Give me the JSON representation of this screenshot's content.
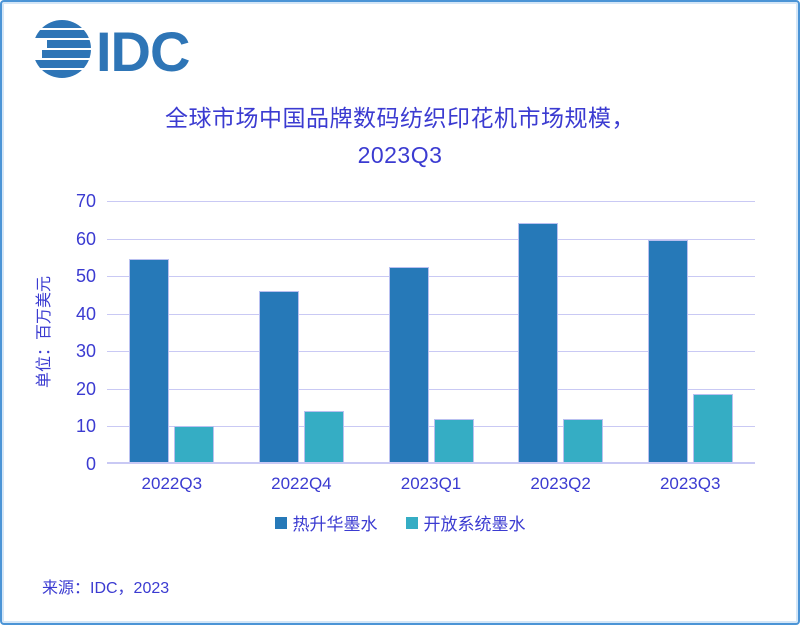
{
  "frame": {
    "border_color": "#4b94d6"
  },
  "logo": {
    "text": "IDC",
    "color": "#2e75b6"
  },
  "title": {
    "line1": "全球市场中国品牌数码纺织印花机市场规模，",
    "line2": "2023Q3"
  },
  "colors": {
    "text": "#3b3bd1",
    "gridline": "#c9c9f4"
  },
  "y_axis": {
    "unit_label": "单位：百万美元"
  },
  "source_note": "来源：IDC，2023",
  "chart_data": {
    "type": "bar",
    "title": "全球市场中国品牌数码纺织印花机市场规模，2023Q3",
    "categories": [
      "2022Q3",
      "2022Q4",
      "2023Q1",
      "2023Q2",
      "2023Q3"
    ],
    "series": [
      {
        "name": "热升华墨水",
        "color": "#2679b8",
        "values": [
          54,
          45.5,
          52,
          63.5,
          59
        ]
      },
      {
        "name": "开放系统墨水",
        "color": "#35adc4",
        "values": [
          9.5,
          13.5,
          11.5,
          11.5,
          18
        ]
      }
    ],
    "xlabel": "",
    "ylabel": "单位：百万美元",
    "ylim": [
      0,
      70
    ],
    "ytick_step": 10,
    "grid": true,
    "legend_position": "bottom",
    "unit": "百万美元 (US$M)"
  }
}
